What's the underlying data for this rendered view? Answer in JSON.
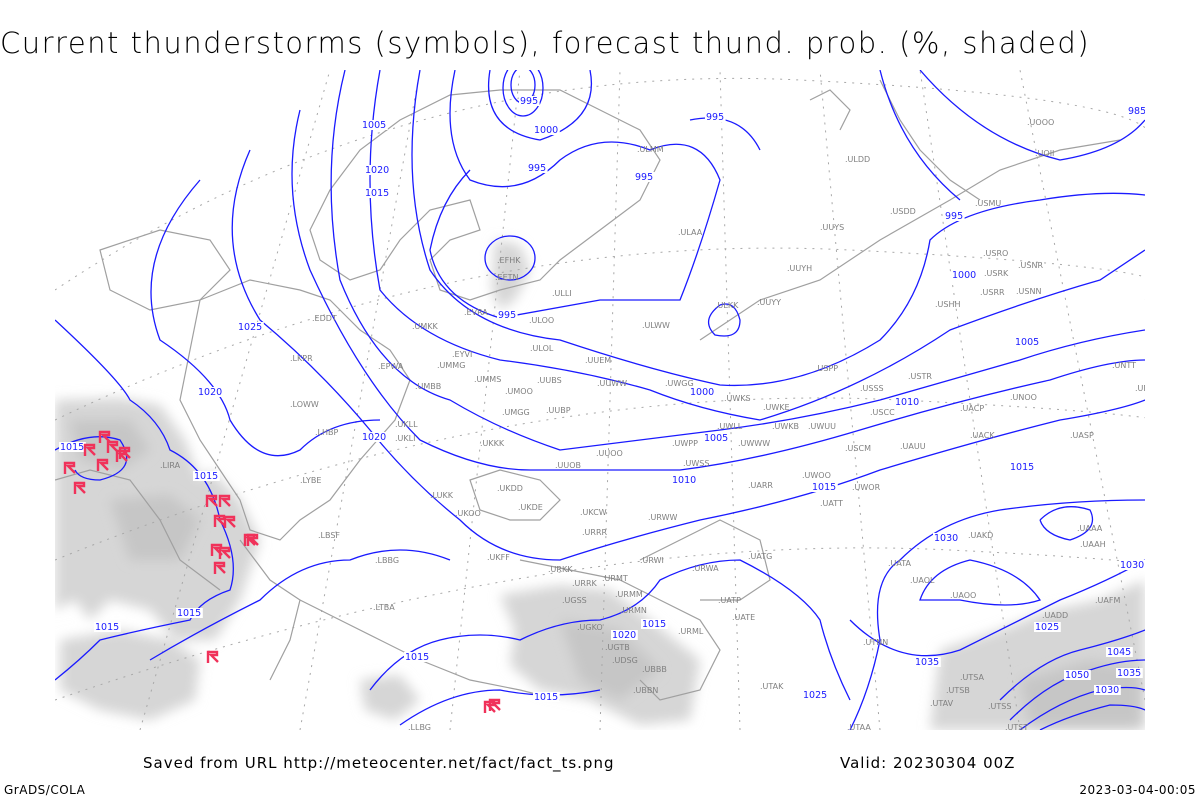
{
  "title": "Current thunderstorms (symbols), forecast thund. prob. (%, shaded)",
  "footer": {
    "source": "Saved from URL http://meteocenter.net/fact/fact_ts.png",
    "valid": "Valid: 20230304 00Z",
    "software": "GrADS/COLA",
    "timestamp": "2023-03-04-00:05"
  },
  "colors": {
    "isobar": "#1a1aff",
    "coastline": "#a0a0a0",
    "grid": "#a0a0a0",
    "thunder_prob_shading": "#d0d0d0",
    "thunderstorm_symbol": "#f0325a",
    "station_label": "#808080"
  },
  "symbols": {
    "thunderstorm": "thunderstorm-flag-icon"
  },
  "isobar_labels": [
    "995",
    "1000",
    "1005",
    "1020",
    "1015",
    "995",
    "995",
    "995",
    "995",
    "985",
    "1000",
    "1005",
    "1010",
    "1015",
    "1030",
    "1030",
    "1025",
    "1020",
    "1020",
    "995",
    "1000",
    "1005",
    "1010",
    "1015",
    "1015",
    "1015",
    "1015",
    "1015",
    "1015",
    "1015",
    "1015",
    "1020",
    "1025",
    "1035",
    "1045",
    "1050",
    "1030",
    "1025",
    "1035"
  ],
  "stations": [
    "ULMM",
    "ULDD",
    "UOOO",
    "UOII",
    "USMU",
    "USDD",
    "UUYS",
    "ULAA",
    "UUYH",
    "USRO",
    "USRK",
    "USNR",
    "USRR",
    "USNN",
    "USHH",
    "ULKK",
    "UUYY",
    "EFHK",
    "EETN",
    "ULLI",
    "EVRA",
    "ULOO",
    "ULWW",
    "UMKK",
    "EDDT",
    "ULOL",
    "UUEM",
    "USPP",
    "USSS",
    "USTR",
    "UNTT",
    "UNBB",
    "UNOO",
    "UACP",
    "UACK",
    "UASP",
    "USCC",
    "USCM",
    "UAUU",
    "LKPR",
    "EPWA",
    "EYVI",
    "UMMG",
    "UMBB",
    "UMMS",
    "UMOO",
    "UUBS",
    "UUWW",
    "UWGG",
    "UWKS",
    "UWKE",
    "UWLL",
    "UWKB",
    "UWUU",
    "UWWW",
    "UWPP",
    "LOWW",
    "LHBP",
    "UKLL",
    "UKLI",
    "UMGG",
    "UUBP",
    "UKKK",
    "UUOO",
    "UUOB",
    "UWSS",
    "UWOO",
    "UARR",
    "UWOR",
    "UATT",
    "LIRA",
    "LYBE",
    "LUKK",
    "UKOO",
    "UKDD",
    "UKDE",
    "UKCW",
    "URWW",
    "URRR",
    "LBSF",
    "UKFF",
    "URKK",
    "URRK",
    "URWI",
    "URWA",
    "UATG",
    "URMT",
    "URMM",
    "URMN",
    "UGSS",
    "UGKO",
    "UGTB",
    "UDSG",
    "UBBB",
    "UBBN",
    "URML",
    "UATE",
    "UATP",
    "UTAK",
    "UATA",
    "UAOL",
    "UAOO",
    "UAKD",
    "UAAA",
    "UAAH",
    "UADD",
    "UAFM",
    "UTNN",
    "UTSA",
    "UTSB",
    "UTAV",
    "UTSS",
    "UTST",
    "UTAA",
    "LLBG",
    "LTBA",
    "LBBG"
  ]
}
